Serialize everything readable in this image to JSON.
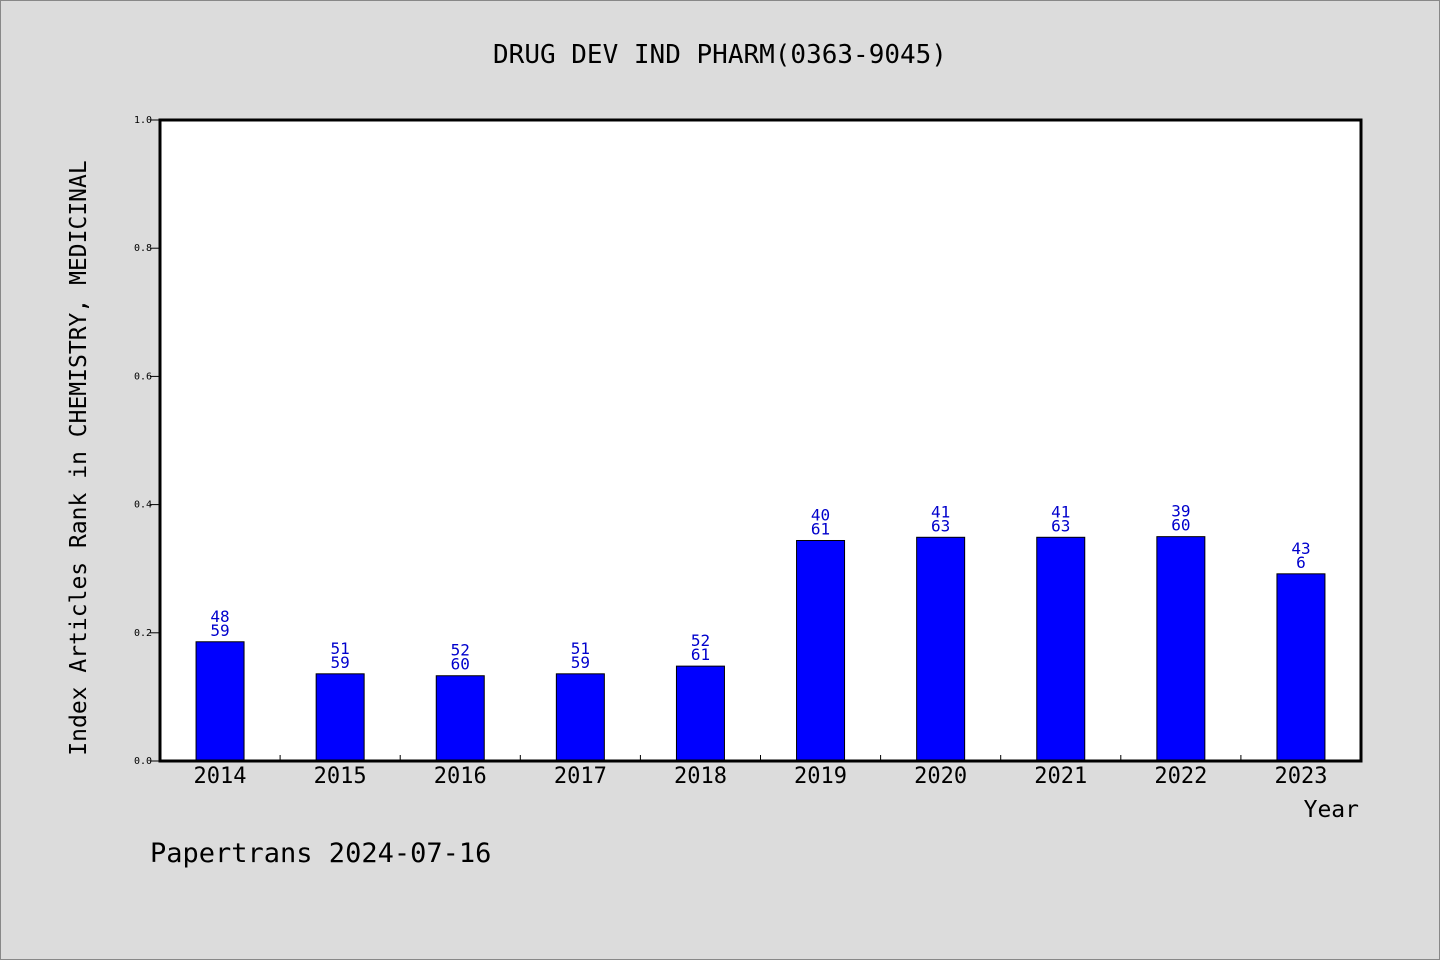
{
  "footer": {
    "text": "Papertrans 2024-07-16"
  },
  "colors": {
    "bar": "#0000ff",
    "bar_label": "#0000cc",
    "axis": "#000000",
    "background": "#dcdcdc",
    "plot_background": "#ffffff"
  },
  "chart_data": {
    "type": "bar",
    "title": "DRUG DEV IND PHARM(0363-9045)",
    "xlabel": "Year",
    "ylabel": "Index Articles Rank in CHEMISTRY, MEDICINAL",
    "ylim": [
      0,
      1.0
    ],
    "yticks": [
      0.0,
      0.2,
      0.4,
      0.6,
      0.8,
      1.0
    ],
    "ytick_labels": [
      "0.0",
      "0.2",
      "0.4",
      "0.6",
      "0.8",
      "1.0"
    ],
    "grid": false,
    "categories": [
      "2014",
      "2015",
      "2016",
      "2017",
      "2018",
      "2019",
      "2020",
      "2021",
      "2022",
      "2023"
    ],
    "values": [
      0.186,
      0.136,
      0.133,
      0.136,
      0.148,
      0.344,
      0.349,
      0.349,
      0.35,
      0.292
    ],
    "label_top": [
      "48",
      "51",
      "52",
      "51",
      "52",
      "40",
      "41",
      "41",
      "39",
      "43"
    ],
    "label_bottom": [
      "59",
      "59",
      "60",
      "59",
      "61",
      "61",
      "63",
      "63",
      "60",
      "6"
    ]
  }
}
